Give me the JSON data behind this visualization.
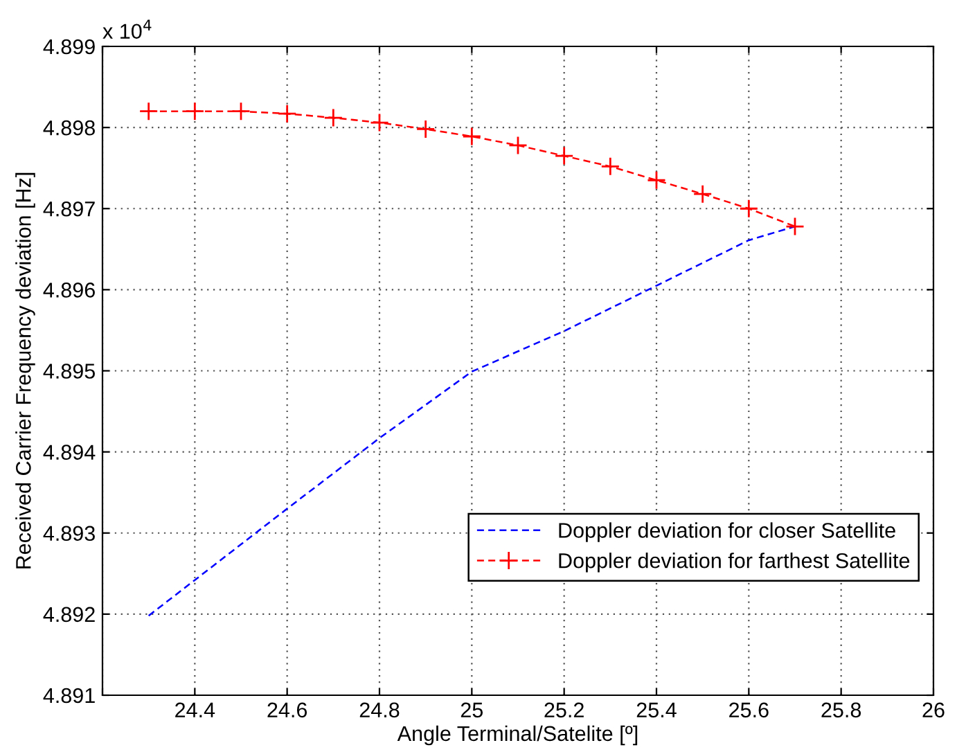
{
  "chart_data": {
    "type": "line",
    "xlabel": "Angle Terminal/Satelite [º]",
    "ylabel": "Received Carrier Frequency deviation [Hz]",
    "annotations": [
      "x 10$^{4}$"
    ],
    "xlim": [
      24.2,
      26
    ],
    "xticks": [
      {
        "value": 24.2,
        "label": null
      },
      24.4,
      24.6,
      24.8,
      25,
      25.2,
      25.4,
      25.6,
      25.8,
      26
    ],
    "ylim": [
      4.891,
      4.899
    ],
    "yticks": [
      4.891,
      4.892,
      4.893,
      4.894,
      4.895,
      4.896,
      4.897,
      4.898,
      4.899
    ],
    "grid": true,
    "legend": "bottom right",
    "line_style": "dashed",
    "series": [
      {
        "name": "Doppler deviation for closer Satellite",
        "color": "#0000ff",
        "marker": "none",
        "x": [
          24.3,
          24.4,
          24.6,
          24.8,
          25.0,
          25.2,
          25.4,
          25.6,
          25.7
        ],
        "values": [
          4.89198,
          4.89242,
          4.8933,
          4.89417,
          4.89499,
          4.89549,
          4.89605,
          4.89661,
          4.89678
        ]
      },
      {
        "name": "Doppler deviation for farthest Satellite",
        "color": "#ff0000",
        "marker": "cross",
        "x": [
          24.3,
          24.4,
          24.5,
          24.6,
          24.7,
          24.8,
          24.9,
          25.0,
          25.1,
          25.2,
          25.3,
          25.4,
          25.5,
          25.6,
          25.7
        ],
        "values": [
          4.8982,
          4.8982,
          4.8982,
          4.89817,
          4.89812,
          4.89806,
          4.89798,
          4.89789,
          4.89778,
          4.89765,
          4.89752,
          4.89735,
          4.89718,
          4.897,
          4.89678
        ]
      }
    ]
  }
}
